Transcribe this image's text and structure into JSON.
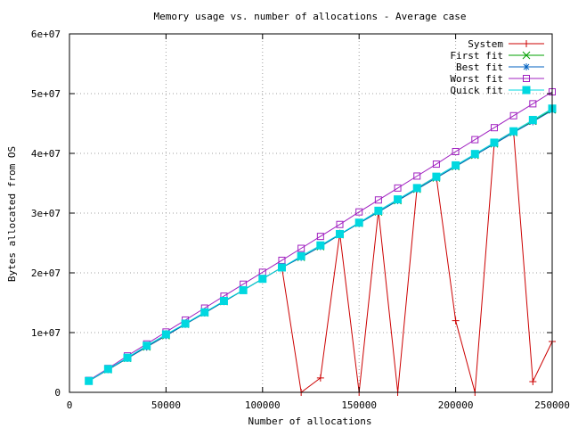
{
  "chart_data": {
    "type": "line",
    "title": "Memory usage vs. number of allocations - Average case",
    "xlabel": "Number of allocations",
    "ylabel": "Bytes allocated from OS",
    "xlim": [
      0,
      250000
    ],
    "ylim": [
      0,
      60000000
    ],
    "grid": true,
    "legend": "top-right",
    "x_ticks": [
      {
        "value": 0,
        "label": "0"
      },
      {
        "value": 50000,
        "label": "50000"
      },
      {
        "value": 100000,
        "label": "100000"
      },
      {
        "value": 150000,
        "label": "150000"
      },
      {
        "value": 200000,
        "label": "200000"
      },
      {
        "value": 250000,
        "label": "250000"
      }
    ],
    "y_ticks": [
      {
        "value": 0,
        "label": "0"
      },
      {
        "value": 10000000,
        "label": "1e+07"
      },
      {
        "value": 20000000,
        "label": "2e+07"
      },
      {
        "value": 30000000,
        "label": "3e+07"
      },
      {
        "value": 40000000,
        "label": "4e+07"
      },
      {
        "value": 50000000,
        "label": "5e+07"
      },
      {
        "value": 60000000,
        "label": "6e+07"
      }
    ],
    "x": [
      10000,
      20000,
      30000,
      40000,
      50000,
      60000,
      70000,
      80000,
      90000,
      100000,
      110000,
      120000,
      130000,
      140000,
      150000,
      160000,
      170000,
      180000,
      190000,
      200000,
      210000,
      220000,
      230000,
      240000,
      250000
    ],
    "series": [
      {
        "name": "System",
        "color": "#cc0000",
        "marker": "plus",
        "values": [
          1900000,
          3800000,
          5700000,
          7600000,
          9500000,
          11400000,
          13300000,
          15200000,
          17100000,
          19000000,
          20900000,
          0,
          2400000,
          26600000,
          0,
          30400000,
          0,
          34200000,
          36100000,
          12000000,
          0,
          41800000,
          43700000,
          1800000,
          8500000
        ]
      },
      {
        "name": "First fit",
        "color": "#00a000",
        "marker": "cross",
        "values": [
          1900000,
          3800000,
          5700000,
          7600000,
          9500000,
          11400000,
          13300000,
          15200000,
          17100000,
          19000000,
          20900000,
          22600000,
          24400000,
          26400000,
          28300000,
          30200000,
          32100000,
          34000000,
          35900000,
          37800000,
          39700000,
          41600000,
          43500000,
          45400000,
          47300000
        ]
      },
      {
        "name": "Best fit",
        "color": "#0060c0",
        "marker": "star",
        "values": [
          1900000,
          3800000,
          5700000,
          7600000,
          9500000,
          11400000,
          13300000,
          15200000,
          17100000,
          19000000,
          20900000,
          22600000,
          24400000,
          26400000,
          28300000,
          30200000,
          32100000,
          34000000,
          35900000,
          37800000,
          39700000,
          41600000,
          43500000,
          45300000,
          47200000
        ]
      },
      {
        "name": "Worst fit",
        "color": "#a020c0",
        "marker": "square-open",
        "values": [
          2000000,
          4000000,
          6100000,
          8100000,
          10100000,
          12100000,
          14100000,
          16100000,
          18100000,
          20100000,
          22100000,
          24100000,
          26100000,
          28100000,
          30200000,
          32200000,
          34200000,
          36200000,
          38200000,
          40300000,
          42300000,
          44300000,
          46300000,
          48300000,
          50300000
        ]
      },
      {
        "name": "Quick fit",
        "color": "#00d8e0",
        "marker": "square-filled",
        "values": [
          1900000,
          3900000,
          5800000,
          7800000,
          9700000,
          11500000,
          13400000,
          15300000,
          17100000,
          19000000,
          20900000,
          22800000,
          24600000,
          26500000,
          28400000,
          30400000,
          32300000,
          34200000,
          36100000,
          38000000,
          39900000,
          41800000,
          43700000,
          45600000,
          47500000
        ]
      }
    ]
  }
}
